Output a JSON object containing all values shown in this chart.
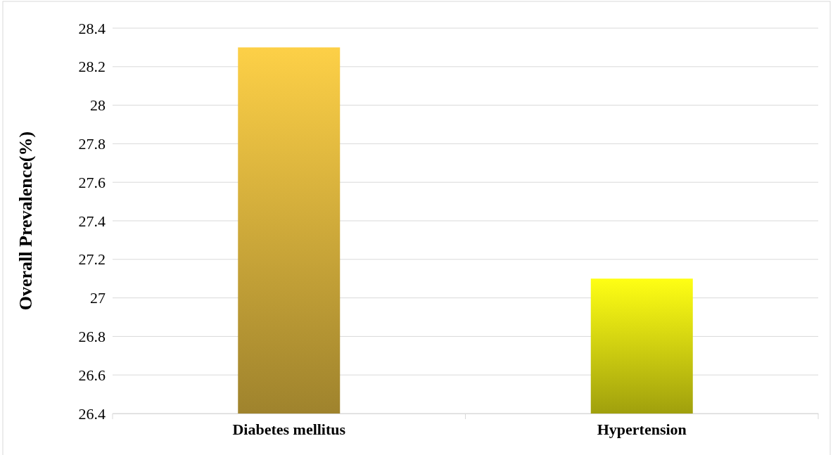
{
  "chart_data": {
    "type": "bar",
    "ylabel": "Overall Prevalence(%)",
    "categories": [
      "Diabetes mellitus",
      "Hypertension"
    ],
    "values": [
      28.3,
      27.1
    ],
    "colors": [
      "#fdd047",
      "#ffff14"
    ],
    "ylim": [
      26.4,
      28.4
    ],
    "yticks": [
      {
        "value": 26.4,
        "label": "26.4"
      },
      {
        "value": 26.6,
        "label": "26.6"
      },
      {
        "value": 26.8,
        "label": "26.8"
      },
      {
        "value": 27,
        "label": "27"
      },
      {
        "value": 27.2,
        "label": "27.2"
      },
      {
        "value": 27.4,
        "label": "27.4"
      },
      {
        "value": 27.6,
        "label": "27.6"
      },
      {
        "value": 27.8,
        "label": "27.8"
      },
      {
        "value": 28,
        "label": "28"
      },
      {
        "value": 28.2,
        "label": "28.2"
      },
      {
        "value": 28.4,
        "label": "28.4"
      }
    ],
    "grid": "y"
  }
}
